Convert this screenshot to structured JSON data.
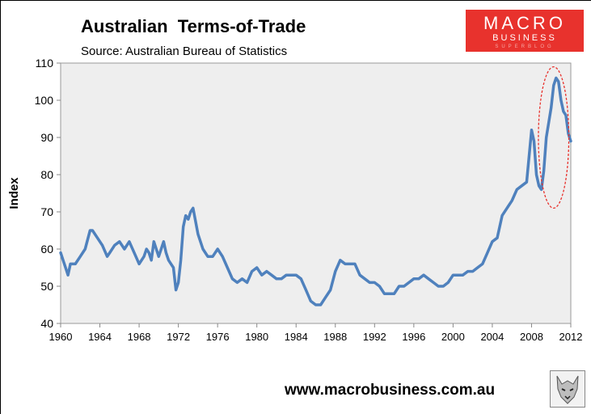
{
  "header": {
    "title": "Australian  Terms-of-Trade",
    "subtitle": "Source: Australian Bureau of Statistics"
  },
  "logo": {
    "line1": "MACRO",
    "line2": "BUSINESS",
    "line3": "SUPERBLOG",
    "background": "#e8322d"
  },
  "footer": {
    "url": "www.macrobusiness.com.au",
    "mascot_icon": "wolf-icon"
  },
  "chart_data": {
    "type": "line",
    "title": "Australian  Terms-of-Trade",
    "subtitle": "Source: Australian Bureau of Statistics",
    "ylabel": "Index",
    "xlabel": "",
    "xlim": [
      1960,
      2012
    ],
    "ylim": [
      40,
      110
    ],
    "x_ticks": [
      "1960",
      "1964",
      "1968",
      "1972",
      "1976",
      "1980",
      "1984",
      "1988",
      "1992",
      "1996",
      "2000",
      "2004",
      "2008",
      "2012"
    ],
    "y_ticks": [
      "40",
      "50",
      "60",
      "70",
      "80",
      "90",
      "100",
      "110"
    ],
    "grid": false,
    "plot_background": "#eeeeee",
    "line_color": "#4f81bd",
    "annotation": {
      "shape": "dashed-ellipse",
      "color": "#e8322d",
      "x_range": [
        2008.7,
        2011.8
      ],
      "y_range": [
        71,
        109
      ]
    },
    "series": [
      {
        "name": "",
        "x": [
          1960,
          1960.5,
          1960.75,
          1961,
          1961.5,
          1962,
          1962.5,
          1963,
          1963.25,
          1963.75,
          1964.25,
          1964.75,
          1965,
          1965.5,
          1966,
          1966.5,
          1967,
          1967.5,
          1968,
          1968.5,
          1968.75,
          1969,
          1969.25,
          1969.5,
          1970,
          1970.5,
          1970.75,
          1971,
          1971.25,
          1971.5,
          1971.75,
          1972,
          1972.25,
          1972.5,
          1972.75,
          1973,
          1973.25,
          1973.5,
          1974,
          1974.5,
          1975,
          1975.5,
          1976,
          1976.5,
          1977,
          1977.5,
          1978,
          1978.5,
          1979,
          1979.5,
          1980,
          1980.5,
          1981,
          1981.5,
          1982,
          1982.5,
          1983,
          1983.5,
          1984,
          1984.5,
          1985,
          1985.5,
          1986,
          1986.5,
          1987,
          1987.5,
          1988,
          1988.5,
          1989,
          1989.5,
          1990,
          1990.5,
          1991,
          1991.5,
          1992,
          1992.5,
          1993,
          1993.5,
          1994,
          1994.5,
          1995,
          1995.5,
          1996,
          1996.5,
          1997,
          1997.5,
          1998,
          1998.5,
          1999,
          1999.5,
          2000,
          2000.5,
          2001,
          2001.5,
          2002,
          2002.5,
          2003,
          2003.5,
          2004,
          2004.5,
          2005,
          2005.5,
          2006,
          2006.5,
          2007,
          2007.5,
          2008,
          2008.25,
          2008.5,
          2008.75,
          2009,
          2009.25,
          2009.5,
          2009.75,
          2010,
          2010.25,
          2010.5,
          2010.75,
          2011,
          2011.25,
          2011.5,
          2011.75,
          2012
        ],
        "y": [
          59,
          55,
          53,
          56,
          56,
          58,
          60,
          65,
          65,
          63,
          61,
          58,
          59,
          61,
          62,
          60,
          62,
          59,
          56,
          58,
          60,
          59,
          57,
          62,
          58,
          62,
          59,
          57,
          56,
          55,
          49,
          51,
          57,
          66,
          69,
          68,
          70,
          71,
          64,
          60,
          58,
          58,
          60,
          58,
          55,
          52,
          51,
          52,
          51,
          54,
          55,
          53,
          54,
          53,
          52,
          52,
          53,
          53,
          53,
          52,
          49,
          46,
          45,
          45,
          47,
          49,
          54,
          57,
          56,
          56,
          56,
          53,
          52,
          51,
          51,
          50,
          48,
          48,
          48,
          50,
          50,
          51,
          52,
          52,
          53,
          52,
          51,
          50,
          50,
          51,
          53,
          53,
          53,
          54,
          54,
          55,
          56,
          59,
          62,
          63,
          69,
          71,
          73,
          76,
          77,
          78,
          92,
          89,
          80,
          77,
          76,
          81,
          90,
          94,
          98,
          104,
          106,
          105,
          100,
          97,
          96,
          91,
          89
        ]
      }
    ]
  }
}
